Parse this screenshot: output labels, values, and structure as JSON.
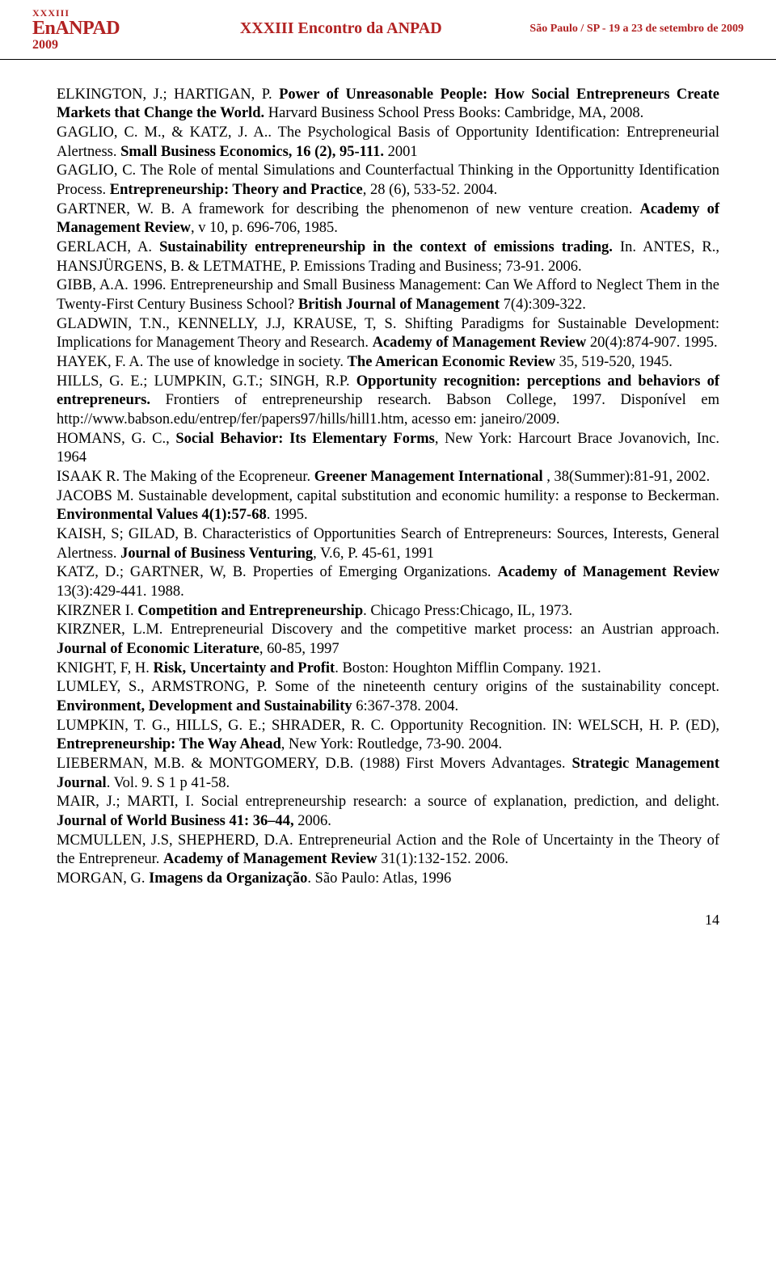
{
  "header": {
    "logo_top": "XXXIII",
    "logo_main": "EnANPAD",
    "logo_year": "2009",
    "center": "XXXIII Encontro da ANPAD",
    "right": "São Paulo / SP - 19 a 23 de setembro de 2009"
  },
  "refs": [
    {
      "pre": "ELKINGTON, J.; HARTIGAN, P. ",
      "bold": "Power of Unreasonable People: How Social Entrepreneurs Create Markets that Change the World.",
      "post": " Harvard Business School Press Books: Cambridge, MA, 2008."
    },
    {
      "pre": "GAGLIO, C. M., & KATZ, J. A.. The Psychological Basis of Opportunity Identification: Entrepreneurial Alertness. ",
      "bold": "Small Business Economics, 16 (2), 95-111.",
      "post": " 2001"
    },
    {
      "pre": "GAGLIO, C. The Role of mental Simulations and Counterfactual Thinking in the Opportunitty Identification Process. ",
      "bold": "Entrepreneurship: Theory and Practice",
      "post": ", 28 (6), 533-52. 2004."
    },
    {
      "pre": "GARTNER, W. B. A framework for describing the phenomenon of new venture creation. ",
      "bold": "Academy of Management Review",
      "post": ", v 10, p. 696-706, 1985."
    },
    {
      "pre": "GERLACH, A. ",
      "bold": "Sustainability entrepreneurship in the context of emissions trading.",
      "post": " In. ANTES, R., HANSJÜRGENS, B. & LETMATHE, P.  Emissions Trading and Business; 73-91. 2006."
    },
    {
      "pre": "GIBB, A.A. 1996. Entrepreneurship and Small Business Management: Can We Afford to Neglect Them in the Twenty-First Century Business School? ",
      "bold": "British Journal of Management",
      "post": " 7(4):309-322."
    },
    {
      "pre": "GLADWIN, T.N., KENNELLY, J.J, KRAUSE, T, S. Shifting Paradigms for Sustainable Development: Implications for Management Theory and Research. ",
      "bold": "Academy of Management Review",
      "post": " 20(4):874-907. 1995."
    },
    {
      "pre": "HAYEK, F. A. The use of knowledge in society. ",
      "bold": "The American Economic Review",
      "post": " 35, 519-520, 1945."
    },
    {
      "pre": "HILLS, G. E.; LUMPKIN, G.T.; SINGH, R.P. ",
      "bold": "Opportunity recognition: perceptions and behaviors of entrepreneurs.",
      "post": " Frontiers of entrepreneurship research. Babson College, 1997. Disponível em http://www.babson.edu/entrep/fer/papers97/hills/hill1.htm, acesso em: janeiro/2009."
    },
    {
      "pre": "HOMANS, G. C., ",
      "bold": "Social Behavior: Its Elementary Forms",
      "post": ", New York: Harcourt Brace Jovanovich, Inc. 1964"
    },
    {
      "pre": "ISAAK R. The Making of the Ecopreneur. ",
      "bold": "Greener Management International",
      "post": " , 38(Summer):81-91, 2002."
    },
    {
      "pre": "JACOBS M. Sustainable development, capital substitution and economic humility: a response to Beckerman.  ",
      "bold": "Environmental Values 4(1):57-68",
      "post": ". 1995."
    },
    {
      "pre": "KAISH, S; GILAD, B. Characteristics of Opportunities Search of Entrepreneurs: Sources, Interests, General Alertness. ",
      "bold": "Journal of Business Venturing",
      "post": ", V.6, P. 45-61, 1991"
    },
    {
      "pre": "KATZ, D.; GARTNER, W, B. Properties of Emerging Organizations. ",
      "bold": "Academy of Management Review",
      "post": " 13(3):429-441. 1988."
    },
    {
      "pre": "KIRZNER I. ",
      "bold": "Competition and Entrepreneurship",
      "post": ". Chicago Press:Chicago, IL, 1973."
    },
    {
      "pre": "KIRZNER, L.M. Entrepreneurial Discovery and the competitive market process: an Austrian approach.  ",
      "bold": "Journal of Economic Literature",
      "post": ", 60-85, 1997"
    },
    {
      "pre": "KNIGHT, F, H. ",
      "bold": "Risk, Uncertainty and Profit",
      "post": ". Boston: Houghton Mifflin Company. 1921."
    },
    {
      "pre": "LUMLEY, S., ARMSTRONG, P. Some of the nineteenth century origins of the sustainability concept. ",
      "bold": "Environment, Development and Sustainability",
      "post": " 6:367-378. 2004."
    },
    {
      "pre": "LUMPKIN, T. G., HILLS, G. E.; SHRADER, R. C. Opportunity Recognition. IN: WELSCH, H. P. (ED), ",
      "bold": "Entrepreneurship: The Way Ahead",
      "post": ", New York: Routledge, 73-90. 2004."
    },
    {
      "pre": "LIEBERMAN, M.B. & MONTGOMERY, D.B. (1988) First Movers Advantages. ",
      "bold": "Strategic Management Journal",
      "post": ". Vol. 9. S 1 p 41-58."
    },
    {
      "pre": "MAIR, J.; MARTI, I. Social entrepreneurship research: a source of explanation, prediction, and delight. ",
      "bold": "Journal of World Business 41: 36–44,",
      "post": " 2006."
    },
    {
      "pre": "MCMULLEN, J.S, SHEPHERD, D.A. Entrepreneurial Action and the Role of Uncertainty in the Theory of the Entrepreneur. ",
      "bold": "Academy of Management Review",
      "post": " 31(1):132-152. 2006."
    },
    {
      "pre": "MORGAN, G. ",
      "bold": "Imagens da Organização",
      "post": ". São Paulo: Atlas, 1996"
    }
  ],
  "page_number": "14"
}
